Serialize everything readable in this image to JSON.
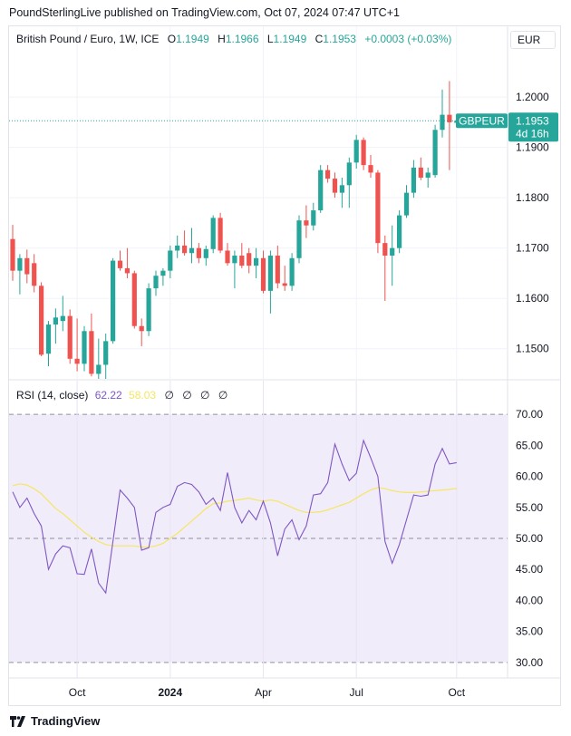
{
  "header": {
    "publisher_text": "PoundSterlingLive published on TradingView.com, Oct 07, 2024 07:47 UTC+1"
  },
  "legend": {
    "symbol": "British Pound / Euro, 1W, ICE",
    "open_label": "O",
    "open": "1.1949",
    "high_label": "H",
    "high": "1.1966",
    "low_label": "L",
    "low": "1.1949",
    "close_label": "C",
    "close": "1.1953",
    "change": "+0.0003 (+0.03%)"
  },
  "currency_button": "EUR",
  "price_tag": {
    "ticker": "GBPEUR",
    "price": "1.1953",
    "countdown": "4d 16h"
  },
  "rsi_legend": {
    "name": "RSI (14, close)",
    "rsi": "62.22",
    "ma": "58.03",
    "na": [
      "∅",
      "∅",
      "∅",
      "∅"
    ]
  },
  "footer": {
    "brand": "TradingView"
  },
  "colors": {
    "up": "#26a69a",
    "down": "#ef5350",
    "rsi": "#7e57c2",
    "rsi_ma": "#f5e663",
    "band": "#f1ecfa"
  },
  "chart_data": [
    {
      "type": "candlestick",
      "title": "British Pound / Euro, 1W, ICE",
      "ylim": [
        1.144,
        1.2085
      ],
      "y_ticks": [
        "1.2000",
        "1.1900",
        "1.1800",
        "1.1700",
        "1.1600",
        "1.1500"
      ],
      "x_ticks": [
        {
          "label": "Oct",
          "index": 9,
          "bold": false
        },
        {
          "label": "2024",
          "index": 22,
          "bold": true
        },
        {
          "label": "Apr",
          "index": 35,
          "bold": false
        },
        {
          "label": "Jul",
          "index": 48,
          "bold": false
        },
        {
          "label": "Oct",
          "index": 62,
          "bold": false
        }
      ],
      "last_close": 1.1953,
      "candles": [
        {
          "o": 1.1718,
          "h": 1.1746,
          "l": 1.1635,
          "c": 1.1655
        },
        {
          "o": 1.1655,
          "h": 1.1688,
          "l": 1.1608,
          "c": 1.168
        },
        {
          "o": 1.168,
          "h": 1.1697,
          "l": 1.163,
          "c": 1.1648
        },
        {
          "o": 1.167,
          "h": 1.1688,
          "l": 1.1612,
          "c": 1.1625
        },
        {
          "o": 1.1625,
          "h": 1.1632,
          "l": 1.1485,
          "c": 1.1488
        },
        {
          "o": 1.149,
          "h": 1.1555,
          "l": 1.1465,
          "c": 1.1548
        },
        {
          "o": 1.1548,
          "h": 1.158,
          "l": 1.151,
          "c": 1.1562
        },
        {
          "o": 1.1555,
          "h": 1.1605,
          "l": 1.1535,
          "c": 1.1565
        },
        {
          "o": 1.1565,
          "h": 1.1578,
          "l": 1.147,
          "c": 1.148
        },
        {
          "o": 1.148,
          "h": 1.156,
          "l": 1.1455,
          "c": 1.147
        },
        {
          "o": 1.147,
          "h": 1.1545,
          "l": 1.1455,
          "c": 1.1535
        },
        {
          "o": 1.1535,
          "h": 1.157,
          "l": 1.1445,
          "c": 1.145
        },
        {
          "o": 1.145,
          "h": 1.152,
          "l": 1.144,
          "c": 1.1468
        },
        {
          "o": 1.1468,
          "h": 1.153,
          "l": 1.144,
          "c": 1.1515
        },
        {
          "o": 1.1515,
          "h": 1.168,
          "l": 1.151,
          "c": 1.1675
        },
        {
          "o": 1.1675,
          "h": 1.1695,
          "l": 1.1655,
          "c": 1.166
        },
        {
          "o": 1.166,
          "h": 1.17,
          "l": 1.164,
          "c": 1.165
        },
        {
          "o": 1.165,
          "h": 1.1655,
          "l": 1.154,
          "c": 1.1545
        },
        {
          "o": 1.1545,
          "h": 1.156,
          "l": 1.1505,
          "c": 1.1535
        },
        {
          "o": 1.1535,
          "h": 1.163,
          "l": 1.1525,
          "c": 1.162
        },
        {
          "o": 1.162,
          "h": 1.1655,
          "l": 1.1605,
          "c": 1.1645
        },
        {
          "o": 1.1645,
          "h": 1.166,
          "l": 1.1625,
          "c": 1.1655
        },
        {
          "o": 1.1655,
          "h": 1.1705,
          "l": 1.164,
          "c": 1.1695
        },
        {
          "o": 1.1695,
          "h": 1.1725,
          "l": 1.168,
          "c": 1.1705
        },
        {
          "o": 1.1705,
          "h": 1.1735,
          "l": 1.1685,
          "c": 1.169
        },
        {
          "o": 1.169,
          "h": 1.174,
          "l": 1.167,
          "c": 1.17
        },
        {
          "o": 1.17,
          "h": 1.171,
          "l": 1.167,
          "c": 1.168
        },
        {
          "o": 1.168,
          "h": 1.1705,
          "l": 1.1665,
          "c": 1.1698
        },
        {
          "o": 1.1698,
          "h": 1.1765,
          "l": 1.169,
          "c": 1.176
        },
        {
          "o": 1.176,
          "h": 1.177,
          "l": 1.169,
          "c": 1.1695
        },
        {
          "o": 1.1695,
          "h": 1.171,
          "l": 1.1665,
          "c": 1.167
        },
        {
          "o": 1.167,
          "h": 1.1695,
          "l": 1.162,
          "c": 1.1685
        },
        {
          "o": 1.1685,
          "h": 1.171,
          "l": 1.166,
          "c": 1.1665
        },
        {
          "o": 1.169,
          "h": 1.17,
          "l": 1.165,
          "c": 1.1665
        },
        {
          "o": 1.1665,
          "h": 1.17,
          "l": 1.164,
          "c": 1.168
        },
        {
          "o": 1.168,
          "h": 1.1695,
          "l": 1.161,
          "c": 1.1615
        },
        {
          "o": 1.1615,
          "h": 1.1695,
          "l": 1.157,
          "c": 1.1685
        },
        {
          "o": 1.1685,
          "h": 1.1705,
          "l": 1.162,
          "c": 1.163
        },
        {
          "o": 1.163,
          "h": 1.1665,
          "l": 1.1615,
          "c": 1.1625
        },
        {
          "o": 1.1625,
          "h": 1.169,
          "l": 1.1615,
          "c": 1.168
        },
        {
          "o": 1.168,
          "h": 1.1765,
          "l": 1.167,
          "c": 1.1755
        },
        {
          "o": 1.1755,
          "h": 1.1785,
          "l": 1.172,
          "c": 1.1745
        },
        {
          "o": 1.1745,
          "h": 1.179,
          "l": 1.1735,
          "c": 1.1775
        },
        {
          "o": 1.1775,
          "h": 1.1865,
          "l": 1.177,
          "c": 1.1855
        },
        {
          "o": 1.1855,
          "h": 1.1865,
          "l": 1.183,
          "c": 1.1838
        },
        {
          "o": 1.1838,
          "h": 1.185,
          "l": 1.18,
          "c": 1.181
        },
        {
          "o": 1.181,
          "h": 1.184,
          "l": 1.178,
          "c": 1.1825
        },
        {
          "o": 1.1825,
          "h": 1.188,
          "l": 1.178,
          "c": 1.187
        },
        {
          "o": 1.187,
          "h": 1.1925,
          "l": 1.1858,
          "c": 1.1915
        },
        {
          "o": 1.1915,
          "h": 1.192,
          "l": 1.1855,
          "c": 1.1865
        },
        {
          "o": 1.1865,
          "h": 1.1885,
          "l": 1.184,
          "c": 1.185
        },
        {
          "o": 1.185,
          "h": 1.1855,
          "l": 1.169,
          "c": 1.171
        },
        {
          "o": 1.171,
          "h": 1.1725,
          "l": 1.1595,
          "c": 1.1685
        },
        {
          "o": 1.1685,
          "h": 1.1745,
          "l": 1.1625,
          "c": 1.17
        },
        {
          "o": 1.17,
          "h": 1.1775,
          "l": 1.169,
          "c": 1.1765
        },
        {
          "o": 1.1765,
          "h": 1.1825,
          "l": 1.176,
          "c": 1.181
        },
        {
          "o": 1.181,
          "h": 1.1875,
          "l": 1.18,
          "c": 1.186
        },
        {
          "o": 1.186,
          "h": 1.188,
          "l": 1.1835,
          "c": 1.184
        },
        {
          "o": 1.184,
          "h": 1.186,
          "l": 1.182,
          "c": 1.185
        },
        {
          "o": 1.1845,
          "h": 1.1945,
          "l": 1.184,
          "c": 1.1935
        },
        {
          "o": 1.1935,
          "h": 1.2015,
          "l": 1.192,
          "c": 1.1965
        },
        {
          "o": 1.1965,
          "h": 1.2032,
          "l": 1.1855,
          "c": 1.195
        },
        {
          "o": 1.1949,
          "h": 1.1966,
          "l": 1.1949,
          "c": 1.1953
        }
      ]
    },
    {
      "type": "line",
      "title": "RSI (14, close)",
      "ylim": [
        27.5,
        72.5
      ],
      "y_ticks": [
        "70.00",
        "65.00",
        "60.00",
        "55.00",
        "50.00",
        "45.00",
        "40.00",
        "35.00",
        "30.00"
      ],
      "bands": {
        "upper": 70,
        "middle": 50,
        "lower": 30
      },
      "series": [
        {
          "values": [
            57.5,
            55.0,
            56.5,
            54.0,
            52.0,
            45.0,
            47.5,
            48.8,
            48.5,
            44.3,
            44.2,
            48.3,
            42.8,
            41.2,
            49.5,
            57.8,
            56.5,
            55.0,
            48.1,
            48.5,
            54.2,
            55.0,
            55.5,
            58.4,
            59.0,
            58.7,
            57.5,
            55.5,
            56.5,
            54.5,
            60.6,
            55.0,
            52.5,
            54.5,
            53.0,
            56.0,
            52.5,
            47.2,
            51.5,
            53.0,
            49.8,
            52.0,
            57.0,
            57.2,
            59.0,
            65.2,
            62.0,
            59.3,
            60.5,
            65.8,
            63.0,
            60.0,
            49.5,
            46.0,
            49.0,
            53.0,
            57.0,
            56.8,
            57.0,
            62.0,
            64.5,
            62.0,
            62.22
          ]
        },
        {
          "values": [
            58.5,
            58.8,
            58.6,
            58.0,
            57.2,
            56.0,
            54.8,
            54.0,
            53.0,
            52.0,
            51.0,
            50.2,
            49.5,
            49.0,
            48.8,
            48.8,
            48.8,
            48.8,
            48.6,
            48.6,
            48.8,
            49.2,
            50.0,
            50.8,
            51.8,
            52.8,
            53.8,
            54.8,
            55.6,
            55.7,
            56.0,
            56.1,
            56.3,
            56.5,
            56.2,
            56.0,
            56.2,
            56.0,
            55.5,
            55.0,
            54.5,
            54.2,
            54.2,
            54.3,
            54.6,
            55.0,
            55.4,
            55.8,
            56.5,
            57.2,
            57.8,
            58.2,
            58.0,
            57.7,
            57.5,
            57.4,
            57.4,
            57.5,
            57.6,
            57.7,
            57.8,
            57.9,
            58.03
          ]
        }
      ]
    }
  ]
}
